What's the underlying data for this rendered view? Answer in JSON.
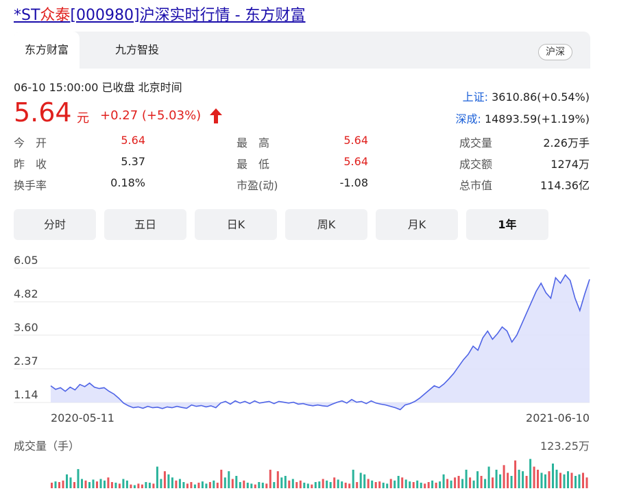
{
  "page": {
    "title_prefix": "*ST",
    "title_highlight": "众泰",
    "title_suffix": "[000980]沪深实时行情 - 东方财富"
  },
  "tabs": [
    {
      "label": "东方财富",
      "active": true
    },
    {
      "label": "九方智投",
      "active": false
    }
  ],
  "market_badge": "沪深",
  "quote": {
    "timestamp": "06-10 15:00:00 已收盘 北京时间",
    "price": "5.64",
    "unit": "元",
    "change": "+0.27 (+5.03%)",
    "direction": "up"
  },
  "indices": [
    {
      "name": "上证:",
      "value": "3610.86(+0.54%)"
    },
    {
      "name": "深成:",
      "value": "14893.59(+1.19%)"
    }
  ],
  "stats": [
    {
      "label": "今　开",
      "value": "5.64",
      "color": "#e0201d"
    },
    {
      "label": "昨　收",
      "value": "5.37",
      "color": "#222222"
    },
    {
      "label": "换手率",
      "value": "0.18%",
      "color": "#222222"
    },
    {
      "label": "最　高",
      "value": "5.64",
      "color": "#e0201d"
    },
    {
      "label": "最　低",
      "value": "5.64",
      "color": "#e0201d"
    },
    {
      "label": "市盈(动)",
      "value": "-1.08",
      "color": "#222222"
    },
    {
      "label": "成交量",
      "value": "2.26万手",
      "color": "#222222"
    },
    {
      "label": "成交额",
      "value": "1274万",
      "color": "#222222"
    },
    {
      "label": "总市值",
      "value": "114.36亿",
      "color": "#222222"
    }
  ],
  "periods": [
    {
      "label": "分时",
      "active": false
    },
    {
      "label": "五日",
      "active": false
    },
    {
      "label": "日K",
      "active": false
    },
    {
      "label": "周K",
      "active": false
    },
    {
      "label": "月K",
      "active": false
    },
    {
      "label": "1年",
      "active": true
    }
  ],
  "volume": {
    "title": "成交量（手）",
    "max_label": "123.25万"
  },
  "chart_data": {
    "type": "area",
    "y_ticks": [
      "6.05",
      "4.82",
      "3.60",
      "2.37",
      "1.14"
    ],
    "ylim": [
      1.14,
      6.05
    ],
    "x_labels": [
      "2020-05-11",
      "2021-06-10"
    ],
    "line_color": "#4e63e6",
    "fill_color": "#dde1fb",
    "series": [
      {
        "values": [
          1.75,
          1.62,
          1.68,
          1.55,
          1.7,
          1.6,
          1.8,
          1.72,
          1.85,
          1.7,
          1.65,
          1.68,
          1.55,
          1.45,
          1.3,
          1.12,
          1.02,
          0.95,
          0.98,
          0.93,
          1.0,
          0.95,
          0.97,
          0.92,
          0.98,
          0.95,
          1.0,
          0.96,
          0.93,
          1.05,
          1.0,
          1.03,
          0.98,
          1.02,
          0.95,
          1.12,
          1.18,
          1.08,
          1.2,
          1.12,
          1.18,
          1.1,
          1.2,
          1.12,
          1.15,
          1.18,
          1.1,
          1.18,
          1.15,
          1.12,
          1.15,
          1.08,
          1.1,
          1.05,
          1.02,
          1.05,
          1.02,
          1.0,
          1.08,
          1.15,
          1.2,
          1.12,
          1.25,
          1.15,
          1.18,
          1.1,
          1.2,
          1.12,
          1.08,
          1.05,
          1.0,
          0.95,
          0.88,
          1.05,
          1.1,
          1.18,
          1.3,
          1.45,
          1.6,
          1.75,
          1.68,
          1.82,
          2.0,
          2.2,
          2.45,
          2.7,
          2.9,
          3.2,
          3.05,
          3.5,
          3.75,
          3.45,
          3.65,
          3.9,
          3.75,
          3.35,
          3.6,
          4.0,
          4.4,
          4.8,
          5.2,
          5.5,
          5.15,
          4.95,
          5.7,
          5.5,
          5.8,
          5.6,
          4.95,
          4.5,
          5.1,
          5.64
        ]
      }
    ],
    "volume_values": [
      0.18,
      0.22,
      0.2,
      0.25,
      0.45,
      0.35,
      0.2,
      0.62,
      0.3,
      0.25,
      0.2,
      0.28,
      0.22,
      0.3,
      0.25,
      0.35,
      0.2,
      0.18,
      0.15,
      0.3,
      0.25,
      0.12,
      0.1,
      0.15,
      0.12,
      0.2,
      0.18,
      0.15,
      0.7,
      0.3,
      0.55,
      0.45,
      0.35,
      0.25,
      0.3,
      0.2,
      0.15,
      0.2,
      0.12,
      0.18,
      0.22,
      0.15,
      0.2,
      0.25,
      0.18,
      0.6,
      0.35,
      0.55,
      0.3,
      0.4,
      0.2,
      0.25,
      0.18,
      0.15,
      0.12,
      0.2,
      0.18,
      0.15,
      0.6,
      0.2,
      0.55,
      0.35,
      0.4,
      0.25,
      0.3,
      0.2,
      0.25,
      0.18,
      0.15,
      0.12,
      0.2,
      0.22,
      0.3,
      0.25,
      0.2,
      0.35,
      0.28,
      0.22,
      0.18,
      0.15,
      0.6,
      0.2,
      0.5,
      0.45,
      0.3,
      0.25,
      0.2,
      0.22,
      0.18,
      0.15,
      0.3,
      0.25,
      0.4,
      0.35,
      0.28,
      0.22,
      0.2,
      0.25,
      0.18,
      0.15,
      0.2,
      0.25,
      0.18,
      0.22,
      0.45,
      0.3,
      0.25,
      0.35,
      0.4,
      0.3,
      0.6,
      0.35,
      0.25,
      0.55,
      0.4,
      0.3,
      0.7,
      0.35,
      0.6,
      0.45,
      0.75,
      0.5,
      0.4,
      0.9,
      0.6,
      0.55,
      0.4,
      0.95,
      0.7,
      0.6,
      0.5,
      0.45,
      0.55,
      0.8,
      0.6,
      0.5,
      0.45,
      0.55,
      0.5,
      0.4,
      0.45,
      0.5,
      0.35
    ],
    "volume_colors_up_down": "mixed"
  }
}
